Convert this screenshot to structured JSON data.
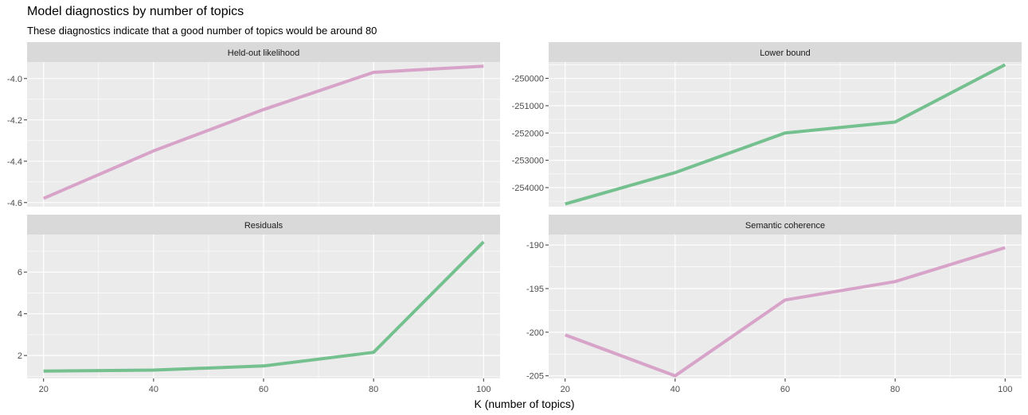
{
  "chart_data": {
    "type": "line",
    "title": "Model diagnostics by number of topics",
    "subtitle": "These diagnostics indicate that a good number of topics would be around 80",
    "xlabel": "K (number of topics)",
    "ylabel": "",
    "x": [
      20,
      40,
      60,
      80,
      100
    ],
    "x_ticks": [
      20,
      40,
      60,
      80,
      100
    ],
    "x_ticklabels": [
      "20",
      "40",
      "60",
      "80",
      "100"
    ],
    "xlim": [
      17,
      103
    ],
    "grid": true,
    "legend": "none",
    "colors": {
      "pink": "#d8a3c9",
      "green": "#74c08f",
      "panel": "#ebebeb",
      "strip": "#d9d9d9",
      "grid": "#ffffff"
    },
    "facets": [
      {
        "name": "Held-out likelihood",
        "color": "pink",
        "values": [
          -4.58,
          -4.35,
          -4.15,
          -3.97,
          -3.94
        ],
        "ylim": [
          -4.62,
          -3.92
        ],
        "y_ticks": [
          -4.6,
          -4.4,
          -4.2,
          -4.0
        ],
        "y_ticklabels": [
          "-4.6",
          "-4.4",
          "-4.2",
          "-4.0"
        ]
      },
      {
        "name": "Lower bound",
        "color": "green",
        "values": [
          -254600,
          -253450,
          -252000,
          -251600,
          -249500
        ],
        "ylim": [
          -254700,
          -249400
        ],
        "y_ticks": [
          -254000,
          -253000,
          -252000,
          -251000,
          -250000
        ],
        "y_ticklabels": [
          "-254000",
          "-253000",
          "-252000",
          "-251000",
          "-250000"
        ]
      },
      {
        "name": "Residuals",
        "color": "green",
        "values": [
          1.25,
          1.3,
          1.5,
          2.15,
          7.45
        ],
        "ylim": [
          0.9,
          7.8
        ],
        "y_ticks": [
          2,
          4,
          6
        ],
        "y_ticklabels": [
          "2",
          "4",
          "6"
        ]
      },
      {
        "name": "Semantic coherence",
        "color": "pink",
        "values": [
          -200.3,
          -205.0,
          -196.3,
          -194.2,
          -190.3
        ],
        "ylim": [
          -205.3,
          -188.8
        ],
        "y_ticks": [
          -205,
          -200,
          -195,
          -190
        ],
        "y_ticklabels": [
          "-205",
          "-200",
          "-195",
          "-190"
        ]
      }
    ]
  }
}
